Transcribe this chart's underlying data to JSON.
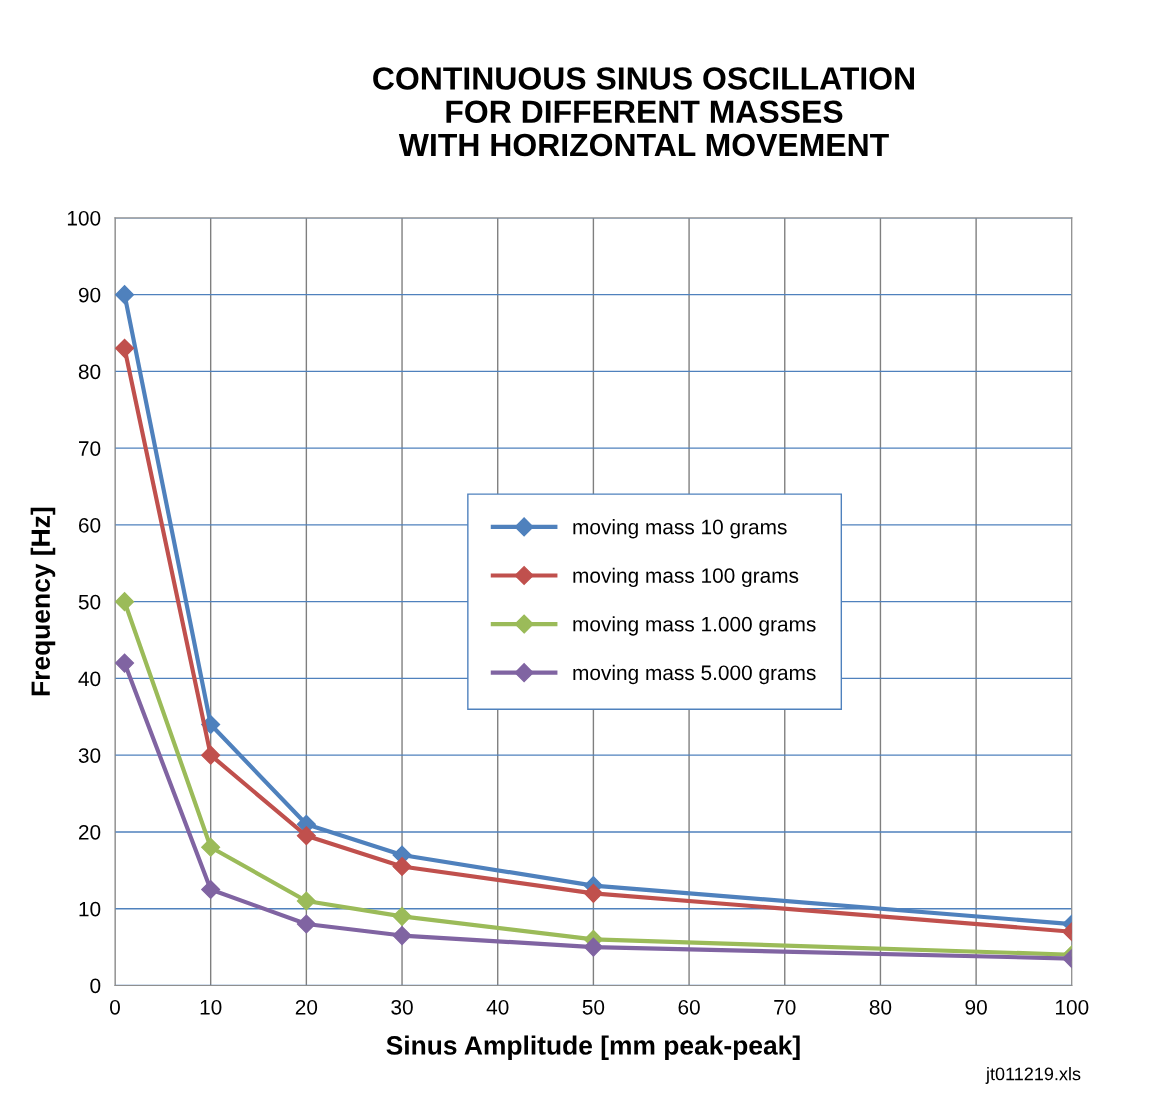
{
  "chart_data": {
    "type": "line",
    "title": "CONTINUOUS SINUS OSCILLATION\nFOR DIFFERENT MASSES\nWITH HORIZONTAL MOVEMENT",
    "xlabel": "Sinus Amplitude [mm peak-peak]",
    "ylabel": "Frequency [Hz]",
    "x": [
      1,
      10,
      20,
      30,
      50,
      100
    ],
    "series": [
      {
        "name": "moving mass 10 grams",
        "color": "#4f81bd",
        "values": [
          90,
          34,
          21,
          17,
          13,
          8
        ]
      },
      {
        "name": "moving mass 100 grams",
        "color": "#c0504d",
        "values": [
          83,
          30,
          19.5,
          15.5,
          12,
          7
        ]
      },
      {
        "name": "moving mass 1.000 grams",
        "color": "#9bbb59",
        "values": [
          50,
          18,
          11,
          9,
          6,
          4
        ]
      },
      {
        "name": "moving mass 5.000 grams",
        "color": "#8064a2",
        "values": [
          42,
          12.5,
          8,
          6.5,
          5,
          3.5
        ]
      }
    ],
    "xlim": [
      0,
      100
    ],
    "xticks": [
      0,
      10,
      20,
      30,
      40,
      50,
      60,
      70,
      80,
      90,
      100
    ],
    "ylim": [
      0,
      100
    ],
    "yticks": [
      0,
      10,
      20,
      30,
      40,
      50,
      60,
      70,
      80,
      90,
      100
    ],
    "grid": true,
    "legend": "center right",
    "marker": "diamond",
    "line_style": "solid",
    "annotations": [
      "jt011219.xls"
    ]
  }
}
